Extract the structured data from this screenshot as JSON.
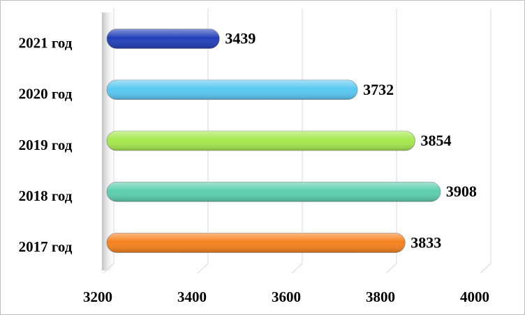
{
  "chart_data": {
    "type": "bar",
    "orientation": "horizontal",
    "categories": [
      "2021 год",
      "2020 год",
      "2019 год",
      "2018 год",
      "2017 год"
    ],
    "values": [
      3439,
      3732,
      3854,
      3908,
      3833
    ],
    "colors": [
      "#2340b8",
      "#5ac8f2",
      "#a5e84e",
      "#5ccfae",
      "#f7821f"
    ],
    "xlim": [
      3200,
      4000
    ],
    "xticks": [
      3200,
      3400,
      3600,
      3800,
      4000
    ],
    "grid": true
  }
}
